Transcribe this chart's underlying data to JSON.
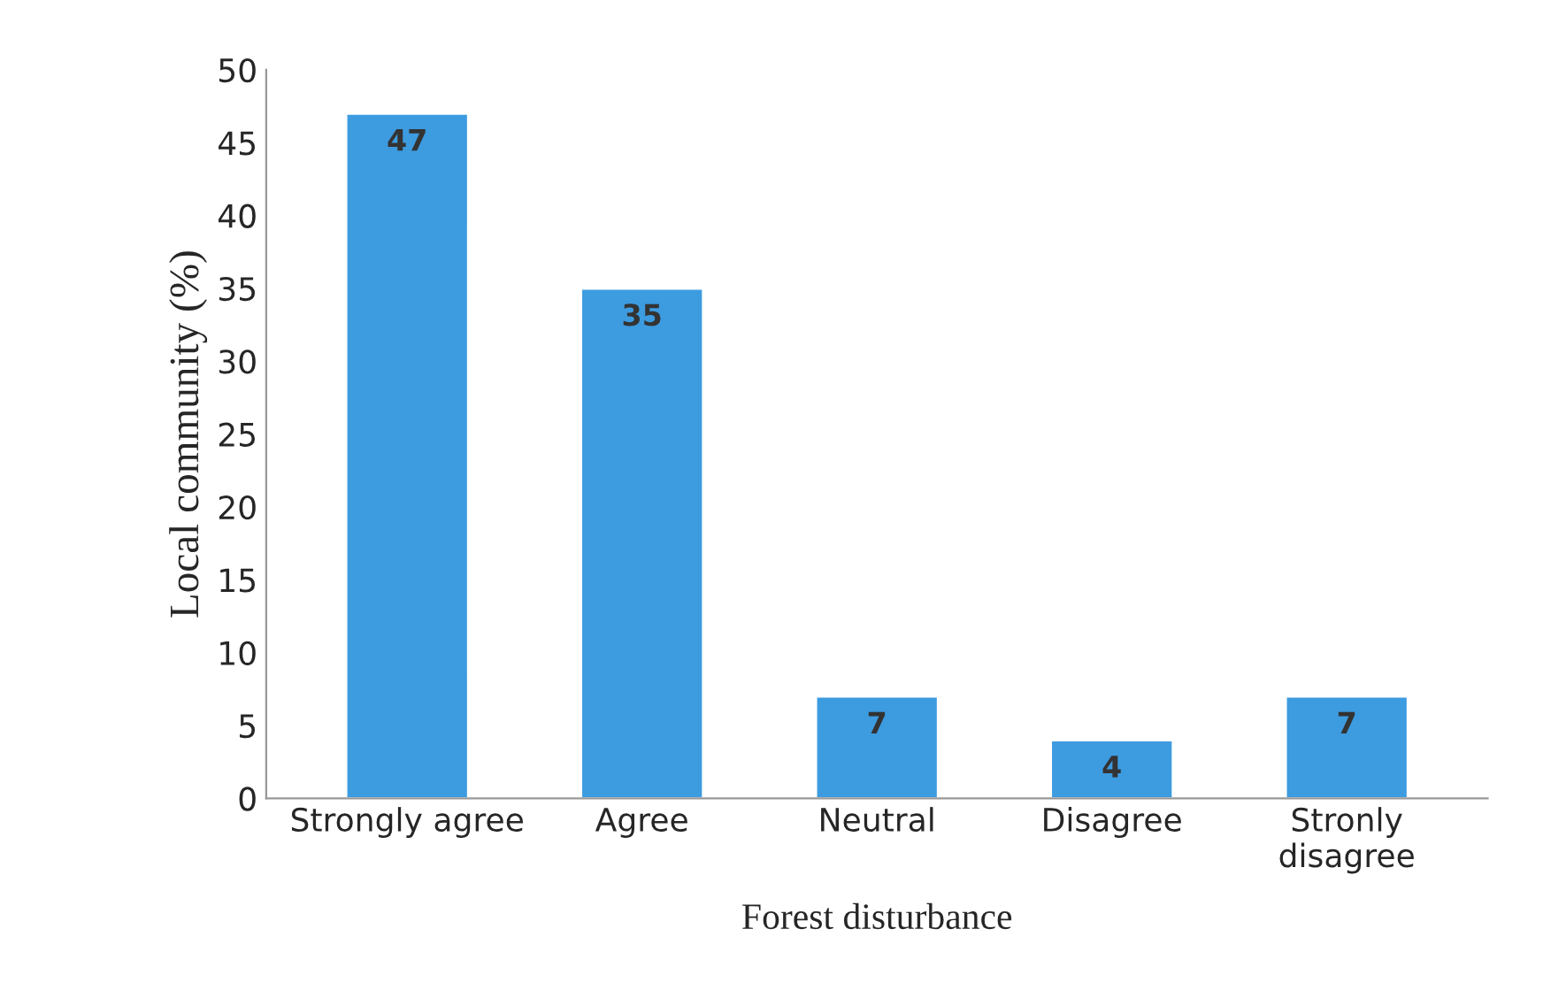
{
  "chart_data": {
    "type": "bar",
    "xlabel": "Forest disturbance",
    "ylabel": "Local community (%)",
    "categories": [
      "Strongly agree",
      "Agree",
      "Neutral",
      "Disagree",
      "Stronly\ndisagree"
    ],
    "values": [
      47,
      35,
      7,
      4,
      7
    ],
    "color": "#3d9be0",
    "ylim": [
      0,
      50
    ],
    "yticks": [
      0,
      5,
      10,
      15,
      20,
      25,
      30,
      35,
      40,
      45,
      50
    ],
    "data_labels": true,
    "grid": false,
    "legend": false
  }
}
